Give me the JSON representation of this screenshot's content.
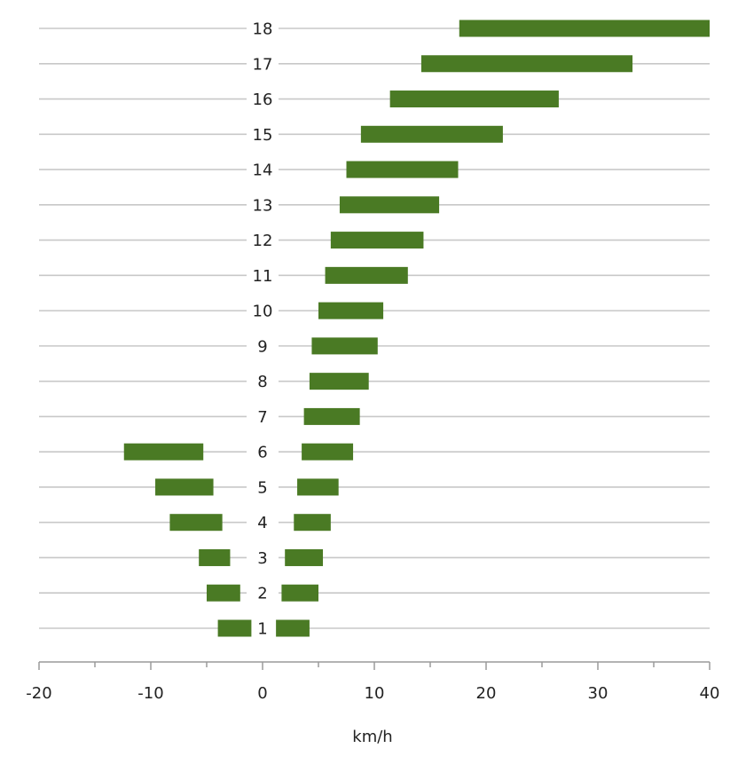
{
  "chart_data": {
    "type": "bar",
    "orientation": "horizontal-range",
    "categories": [
      "1",
      "2",
      "3",
      "4",
      "5",
      "6",
      "7",
      "8",
      "9",
      "10",
      "11",
      "12",
      "13",
      "14",
      "15",
      "16",
      "17",
      "18"
    ],
    "series": [
      {
        "ranges": [
          [
            -4,
            -1
          ],
          [
            -5,
            -2
          ],
          [
            -5.7,
            -2.9
          ],
          [
            -8.3,
            -3.6
          ],
          [
            -9.6,
            -4.4
          ],
          [
            -12.4,
            -5.3
          ],
          null,
          null,
          null,
          null,
          null,
          null,
          null,
          null,
          null,
          null,
          null,
          null
        ]
      },
      {
        "ranges": [
          [
            1.2,
            4.2
          ],
          [
            1.7,
            5
          ],
          [
            2,
            5.4
          ],
          [
            2.8,
            6.1
          ],
          [
            3.1,
            6.8
          ],
          [
            3.5,
            8.1
          ],
          [
            3.7,
            8.7
          ],
          [
            4.2,
            9.5
          ],
          [
            4.4,
            10.3
          ],
          [
            5,
            10.8
          ],
          [
            5.6,
            13
          ],
          [
            6.1,
            14.4
          ],
          [
            6.9,
            15.8
          ],
          [
            7.5,
            17.5
          ],
          [
            8.8,
            21.5
          ],
          [
            11.4,
            26.5
          ],
          [
            14.2,
            33.1
          ],
          [
            17.6,
            40
          ]
        ]
      }
    ],
    "xlabel": "km/h",
    "xlim": [
      -20,
      40
    ],
    "xticks": [
      "-20",
      "-10",
      "0",
      "10",
      "20",
      "30",
      "40"
    ],
    "grid": true,
    "legend": "none",
    "colors": {
      "bar": "#4a7a24",
      "grid": "#c8c8c8"
    }
  }
}
